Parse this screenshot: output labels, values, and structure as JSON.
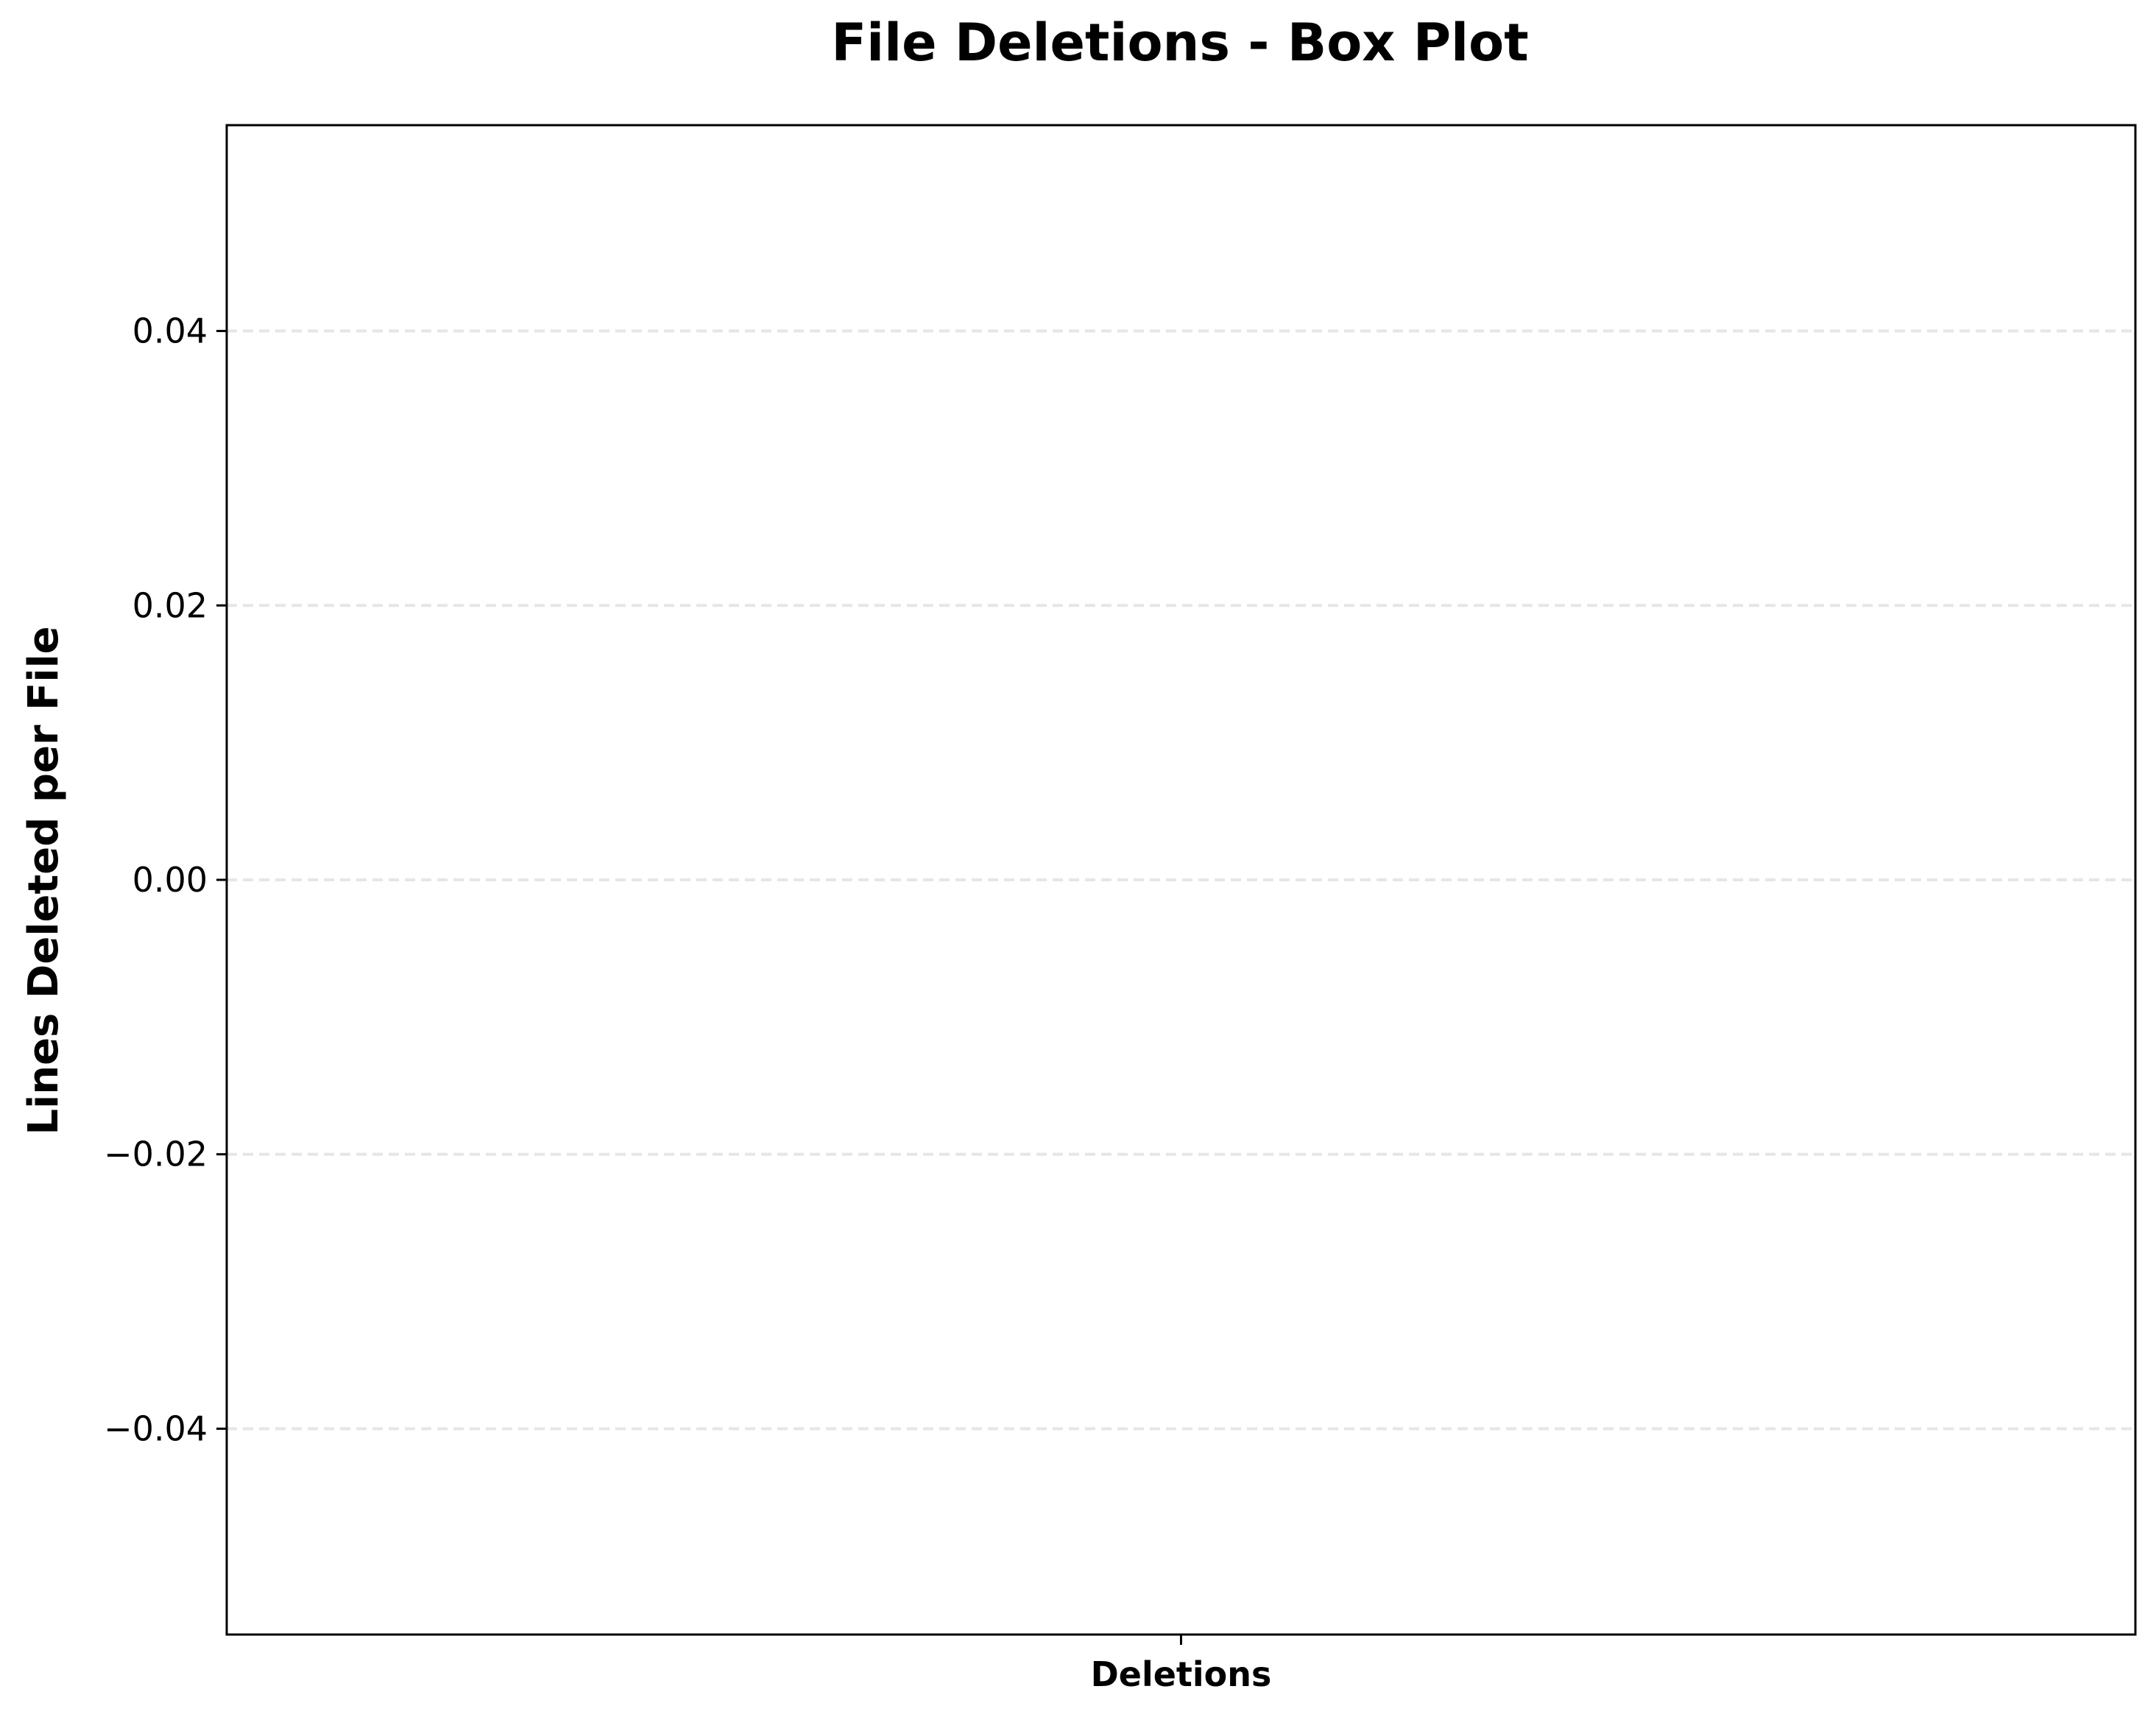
{
  "chart_data": {
    "type": "box",
    "title": "File Deletions - Box Plot",
    "xlabel": "",
    "ylabel": "Lines Deleted per File",
    "categories": [
      "Deletions"
    ],
    "series": [],
    "ylim": [
      -0.055,
      0.055
    ],
    "yticks": [
      0.04,
      0.02,
      0.0,
      -0.02,
      -0.04
    ],
    "ytick_labels": [
      "0.04",
      "0.02",
      "0.00",
      "−0.02",
      "−0.04"
    ],
    "grid": "y-dashed",
    "grid_color": "#e6e6e6"
  }
}
